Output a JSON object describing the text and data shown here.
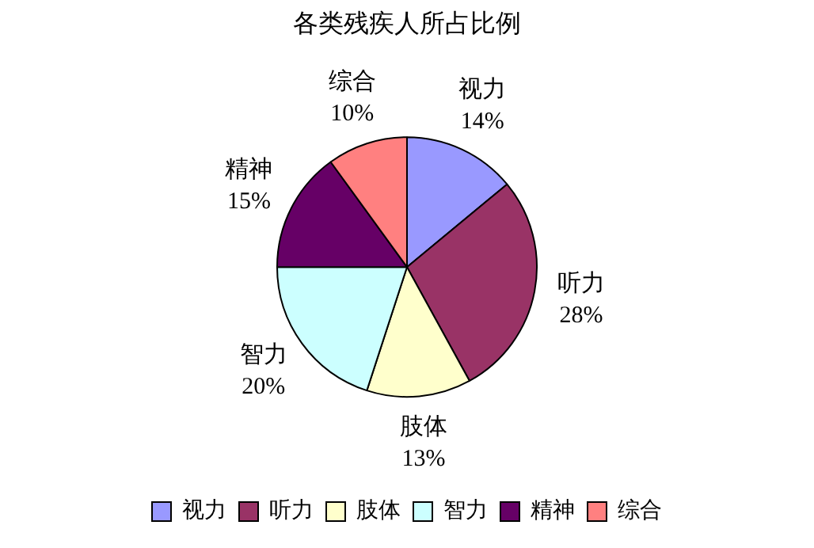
{
  "chart_data": {
    "type": "pie",
    "title": "各类残疾人所占比例",
    "categories": [
      "视力",
      "听力",
      "肢体",
      "智力",
      "精神",
      "综合"
    ],
    "values": [
      14,
      28,
      13,
      20,
      15,
      10
    ],
    "value_labels": [
      "14%",
      "28%",
      "13%",
      "20%",
      "15%",
      "10%"
    ],
    "colors": [
      "#9999ff",
      "#993366",
      "#ffffcc",
      "#ccffff",
      "#660066",
      "#ff8080"
    ],
    "legend": "bottom"
  }
}
